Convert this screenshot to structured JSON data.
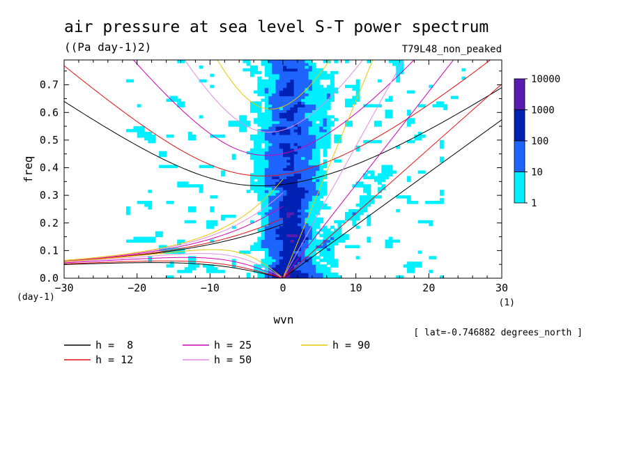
{
  "chart_data": {
    "type": "heatmap",
    "title": "air pressure at sea level S-T power spectrum",
    "subtitle": "((Pa day-1)2)",
    "run_label": "T79L48_non_peaked",
    "xlabel": "wvn",
    "ylabel": "freq",
    "x_unit": "(1)",
    "y_unit": "(day-1)",
    "xlim": [
      -30,
      30
    ],
    "ylim": [
      0,
      0.79
    ],
    "x_ticks": [
      "-30",
      "-20",
      "-10",
      "0",
      "10",
      "20",
      "30"
    ],
    "y_ticks": [
      "0.0",
      "0.1",
      "0.2",
      "0.3",
      "0.4",
      "0.5",
      "0.6",
      "0.7"
    ],
    "colorbar": {
      "scale": "log",
      "levels": [
        "10000",
        "1000",
        "100",
        "10",
        "1"
      ],
      "colors": [
        "#5a1bb0",
        "#0022b4",
        "#1e64ff",
        "#00f0ff"
      ]
    },
    "latitude_note": "[ lat=-0.746882 degrees_north ]",
    "dispersion_curves": [
      {
        "name": "h =  8",
        "h": 8,
        "color": "#000000"
      },
      {
        "name": "h = 12",
        "h": 12,
        "color": "#e01010"
      },
      {
        "name": "h = 25",
        "h": 25,
        "color": "#d000b0"
      },
      {
        "name": "h = 50",
        "h": 50,
        "color": "#e68ce6"
      },
      {
        "name": "h = 90",
        "h": 90,
        "color": "#e6c800"
      }
    ]
  }
}
